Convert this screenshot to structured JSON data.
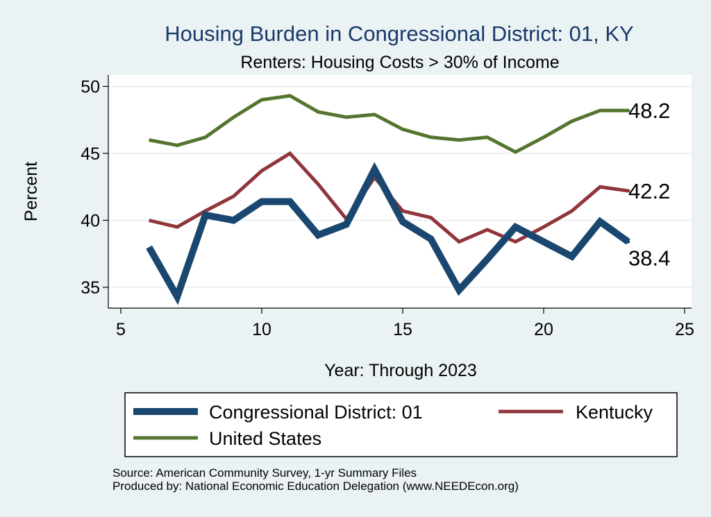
{
  "chart_data": {
    "type": "line",
    "title": "Housing Burden in Congressional District:  01, KY",
    "subtitle": "Renters: Housing Costs > 30% of Income",
    "xlabel": "Year: Through 2023",
    "ylabel": "Percent",
    "xlim": [
      5,
      25
    ],
    "ylim": [
      33.5,
      51
    ],
    "xticks": [
      5,
      10,
      15,
      20,
      25
    ],
    "yticks": [
      35,
      40,
      45,
      50
    ],
    "grid": true,
    "legend_position": "bottom",
    "series": [
      {
        "name": "Congressional District:  01",
        "color": "#1a476f",
        "width": 10,
        "x": [
          6,
          7,
          8,
          9,
          10,
          11,
          12,
          13,
          14,
          15,
          16,
          17,
          18,
          19,
          20,
          21,
          22,
          23
        ],
        "y": [
          38.0,
          34.3,
          40.4,
          40.0,
          41.4,
          41.4,
          38.9,
          39.7,
          43.8,
          39.9,
          38.6,
          34.8,
          37.1,
          39.5,
          38.4,
          37.3,
          39.9,
          38.4
        ],
        "end_label": "38.4"
      },
      {
        "name": "Kentucky",
        "color": "#90353b",
        "width": 5,
        "x": [
          6,
          7,
          8,
          9,
          10,
          11,
          12,
          13,
          14,
          15,
          16,
          17,
          18,
          19,
          20,
          21,
          22,
          23
        ],
        "y": [
          40.0,
          39.5,
          40.7,
          41.8,
          43.7,
          45.0,
          42.7,
          40.1,
          43.2,
          40.7,
          40.2,
          38.4,
          39.3,
          38.4,
          39.5,
          40.7,
          42.5,
          42.2
        ],
        "end_label": "42.2"
      },
      {
        "name": "United States",
        "color": "#55752f",
        "width": 5,
        "x": [
          6,
          7,
          8,
          9,
          10,
          11,
          12,
          13,
          14,
          15,
          16,
          17,
          18,
          19,
          20,
          21,
          22,
          23
        ],
        "y": [
          46.0,
          45.6,
          46.2,
          47.7,
          49.0,
          49.3,
          48.1,
          47.7,
          47.9,
          46.8,
          46.2,
          46.0,
          46.2,
          45.1,
          46.2,
          47.4,
          48.2,
          48.2
        ],
        "end_label": "48.2"
      }
    ],
    "source_lines": [
      "Source: American Community Survey, 1-yr Summary Files",
      "Produced by: National Economic Education Delegation (www.NEEDEcon.org)"
    ]
  }
}
